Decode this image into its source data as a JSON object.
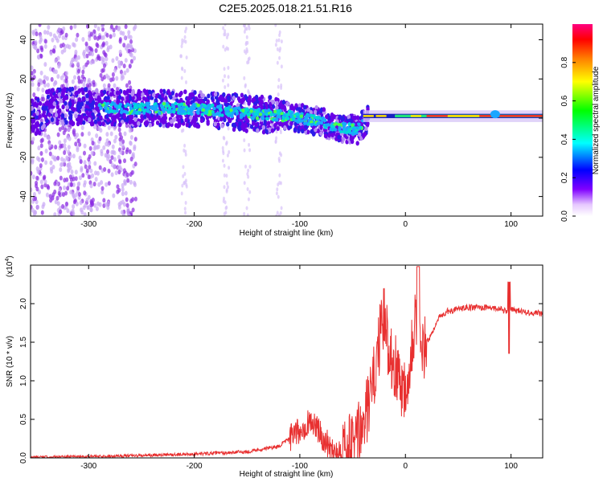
{
  "title": "C2E5.2025.018.21.51.R16",
  "chart_data": [
    {
      "type": "heatmap",
      "title": "C2E5.2025.018.21.51.R16",
      "xlabel": "Height of straight line (km)",
      "ylabel": "Frequency (Hz)",
      "xlim": [
        -355,
        130
      ],
      "ylim": [
        -50,
        48
      ],
      "xticks": [
        -300,
        -200,
        -100,
        0,
        100
      ],
      "xtick_labels": [
        "-300",
        "-200",
        "-100",
        "0",
        "100"
      ],
      "yticks": [
        -40,
        -20,
        0,
        20,
        40
      ],
      "ytick_labels": [
        "-40",
        "-20",
        "0",
        "20",
        "40"
      ],
      "colorbar": {
        "label": "Normalized spectral amplitude",
        "range": [
          0,
          1
        ],
        "ticks": [
          0.0,
          0.2,
          0.4,
          0.6,
          0.8
        ],
        "tick_labels": [
          "0.0",
          "0.2",
          "0.4",
          "0.6",
          "0.8"
        ],
        "colormap": [
          "#ffffff",
          "#8000ff",
          "#0000ff",
          "#00ffff",
          "#00ff00",
          "#ffff00",
          "#ff8000",
          "#ff0000",
          "#ff0080"
        ]
      },
      "ridge_center_freq": [
        {
          "x": -340,
          "y": 6
        },
        {
          "x": -300,
          "y": 6
        },
        {
          "x": -260,
          "y": 5
        },
        {
          "x": -220,
          "y": 5
        },
        {
          "x": -180,
          "y": 4
        },
        {
          "x": -140,
          "y": 2
        },
        {
          "x": -110,
          "y": 1
        },
        {
          "x": -80,
          "y": -2
        },
        {
          "x": -60,
          "y": -5
        },
        {
          "x": -45,
          "y": -6
        },
        {
          "x": -35,
          "y": 0
        },
        {
          "x": -20,
          "y": 1
        },
        {
          "x": 0,
          "y": 1
        },
        {
          "x": 50,
          "y": 1
        },
        {
          "x": 100,
          "y": 1
        },
        {
          "x": 130,
          "y": 1
        }
      ],
      "grid": false
    },
    {
      "type": "line",
      "title": "",
      "xlabel": "Height of straight line (km)",
      "ylabel": "SNR (10 * v/v)",
      "scale_note": "(x10",
      "scale_exp": "4",
      "scale_close": ")",
      "xlim": [
        -355,
        130
      ],
      "ylim": [
        0,
        2.5
      ],
      "xticks": [
        -300,
        -200,
        -100,
        0,
        100
      ],
      "xtick_labels": [
        "-300",
        "-200",
        "-100",
        "0",
        "100"
      ],
      "yticks": [
        0.0,
        0.5,
        1.0,
        1.5,
        2.0
      ],
      "ytick_labels": [
        "0.0",
        "0.5",
        "1.0",
        "1.5",
        "2.0"
      ],
      "series": [
        {
          "color": "#e83030",
          "x": [
            -355,
            -300,
            -250,
            -200,
            -150,
            -120,
            -100,
            -90,
            -80,
            -70,
            -60,
            -50,
            -40,
            -30,
            -25,
            -20,
            -15,
            -10,
            -5,
            0,
            5,
            10,
            15,
            20,
            25,
            30,
            40,
            50,
            60,
            70,
            80,
            90,
            95,
            100,
            110,
            120,
            130
          ],
          "y": [
            0.01,
            0.02,
            0.03,
            0.05,
            0.08,
            0.15,
            0.35,
            0.5,
            0.3,
            0.12,
            0.1,
            0.15,
            0.4,
            1.0,
            1.5,
            1.8,
            1.4,
            1.2,
            1.0,
            0.9,
            1.4,
            1.9,
            1.3,
            1.5,
            1.6,
            1.8,
            1.9,
            1.93,
            1.95,
            1.95,
            1.95,
            1.93,
            1.9,
            1.92,
            1.9,
            1.88,
            1.87
          ]
        }
      ],
      "grid": false
    }
  ]
}
